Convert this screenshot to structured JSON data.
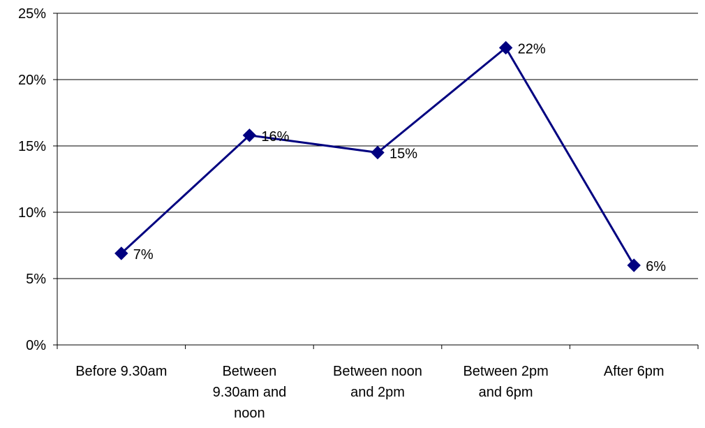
{
  "chart_data": {
    "type": "line",
    "title": "",
    "xlabel": "",
    "ylabel": "",
    "categories": [
      [
        "Before 9.30am"
      ],
      [
        "Between",
        "9.30am and",
        "noon"
      ],
      [
        "Between noon",
        "and 2pm"
      ],
      [
        "Between 2pm",
        "and 6pm"
      ],
      [
        "After 6pm"
      ]
    ],
    "series": [
      {
        "values": [
          0.069,
          0.158,
          0.145,
          0.224,
          0.06
        ],
        "labels": [
          "7%",
          "16%",
          "15%",
          "22%",
          "6%"
        ],
        "color": "#000080",
        "marker": "diamond"
      }
    ],
    "ylim": [
      0,
      0.25
    ],
    "yticks": [
      0,
      0.05,
      0.1,
      0.15,
      0.2,
      0.25
    ],
    "ytick_labels": [
      "0%",
      "5%",
      "10%",
      "15%",
      "20%",
      "25%"
    ],
    "grid": "horizontal",
    "legend": "none"
  }
}
